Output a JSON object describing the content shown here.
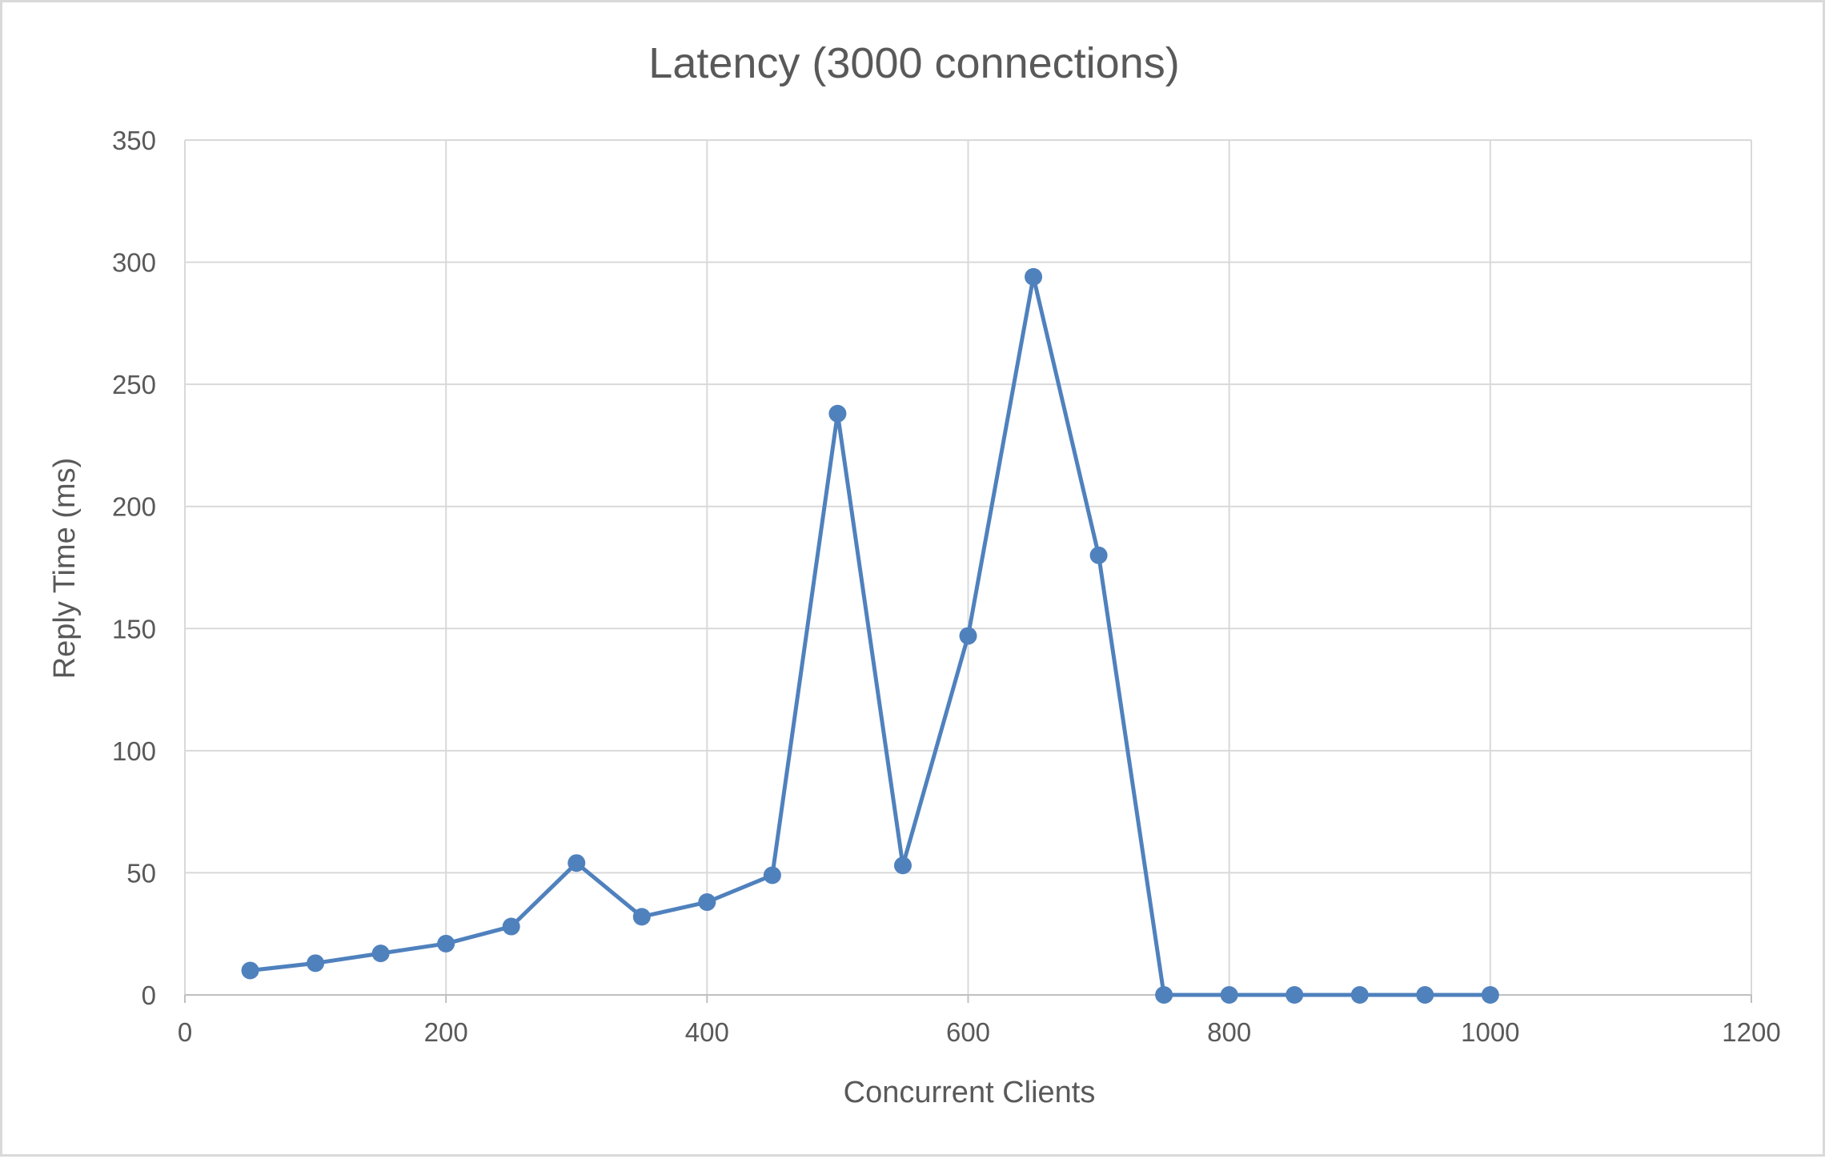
{
  "chart_data": {
    "type": "scatter",
    "title": "Latency (3000 connections)",
    "xlabel": "Concurrent Clients",
    "ylabel": "Reply Time (ms)",
    "xlim": [
      0,
      1200
    ],
    "ylim": [
      0,
      350
    ],
    "xticks": [
      0,
      200,
      400,
      600,
      800,
      1000,
      1200
    ],
    "yticks": [
      0,
      50,
      100,
      150,
      200,
      250,
      300,
      350
    ],
    "grid": true,
    "legend": "none",
    "color": "#4f81bd",
    "series": [
      {
        "x": [
          50,
          100,
          150,
          200,
          250,
          300,
          350,
          400,
          450,
          500,
          550,
          600,
          650,
          700,
          750,
          800,
          850,
          900,
          950,
          1000
        ],
        "y": [
          10,
          13,
          17,
          21,
          28,
          54,
          32,
          38,
          49,
          238,
          53,
          147,
          294,
          180,
          0,
          0,
          0,
          0,
          0,
          0
        ]
      }
    ]
  }
}
